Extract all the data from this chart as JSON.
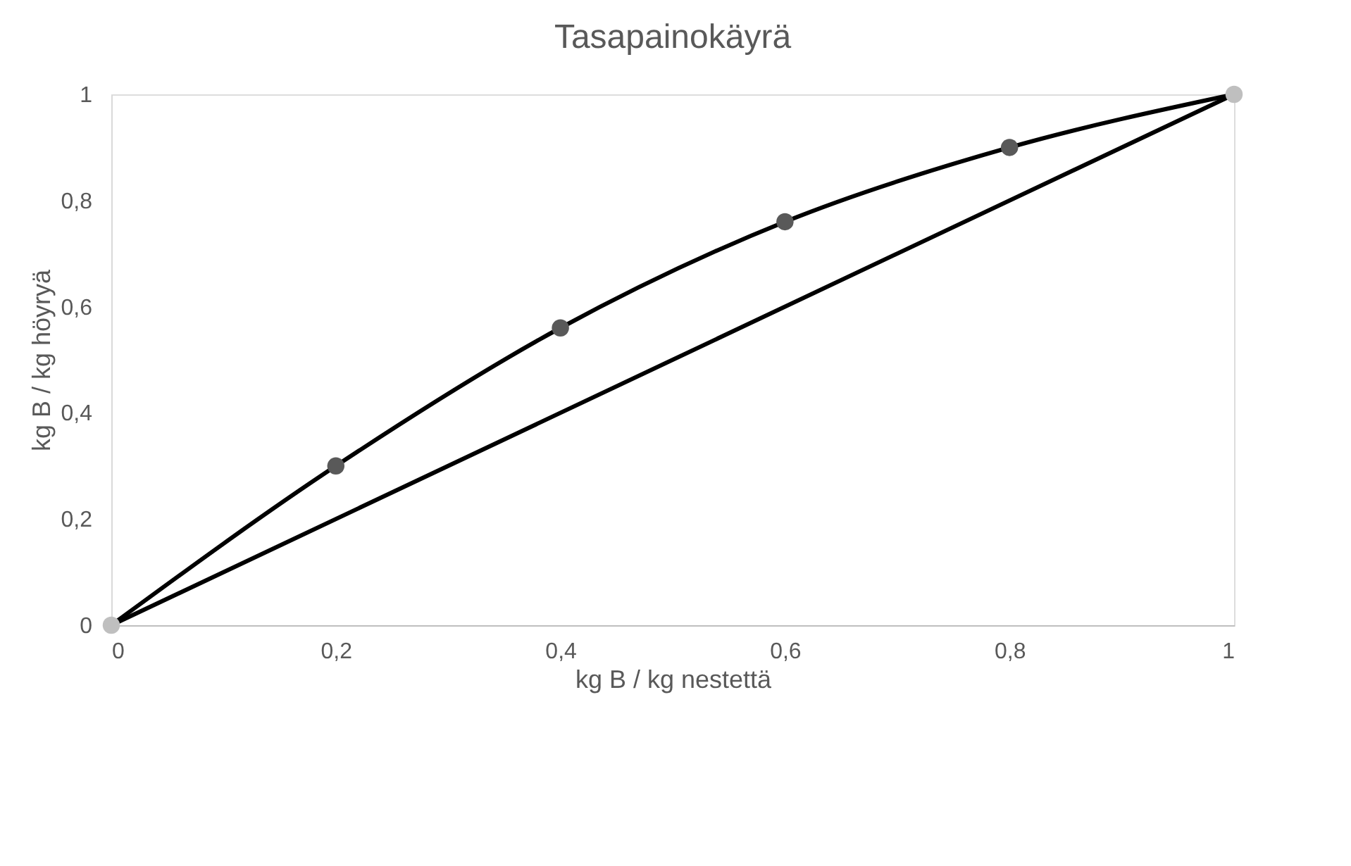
{
  "chart_data": {
    "type": "line",
    "title": "Tasapainokäyrä",
    "xlabel": "kg B / kg nestettä",
    "ylabel": "kg B / kg höyryä",
    "xlim": [
      0,
      1
    ],
    "ylim": [
      0,
      1
    ],
    "xticks": [
      0,
      {
        "value": 0.2,
        "label": "0,2"
      },
      {
        "value": 0.4,
        "label": "0,4"
      },
      {
        "value": 0.6,
        "label": "0,6"
      },
      {
        "value": 0.8,
        "label": "0,8"
      },
      1
    ],
    "yticks": [
      0,
      {
        "value": 0.2,
        "label": "0,2"
      },
      {
        "value": 0.4,
        "label": "0,4"
      },
      {
        "value": 0.6,
        "label": "0,6"
      },
      {
        "value": 0.8,
        "label": "0,8"
      },
      1
    ],
    "grid": false,
    "series": [
      {
        "color": "#000000",
        "x": [
          0,
          0.2,
          0.4,
          0.6,
          0.8,
          1
        ],
        "values": [
          0,
          0.3,
          0.56,
          0.76,
          0.9,
          1
        ]
      },
      {
        "type": "scatter",
        "color": "#595959",
        "x": [
          0.2,
          0.4,
          0.6,
          0.8
        ],
        "values": [
          0.3,
          0.56,
          0.76,
          0.9
        ]
      },
      {
        "type": "line",
        "color": "#000000",
        "x": [
          0,
          1
        ],
        "values": [
          0,
          1
        ]
      },
      {
        "type": "scatter",
        "color": "#bfbfbf",
        "x": [
          0,
          1
        ],
        "values": [
          0,
          1
        ]
      }
    ]
  }
}
